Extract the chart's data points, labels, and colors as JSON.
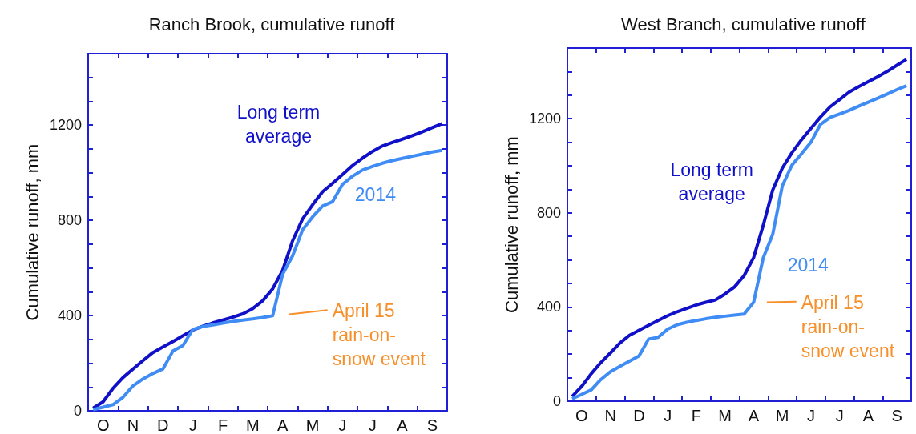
{
  "chart_data": [
    {
      "type": "line",
      "title": "Ranch Brook, cumulative runoff",
      "ylabel": "Cumulative runoff, mm",
      "categories": [
        null,
        "O",
        null,
        null,
        "N",
        null,
        null,
        "D",
        null,
        null,
        "J",
        null,
        null,
        "F",
        null,
        null,
        "M",
        null,
        null,
        "A",
        null,
        null,
        "M",
        null,
        null,
        "J",
        null,
        null,
        "J",
        null,
        null,
        "A",
        null,
        null,
        "S",
        null
      ],
      "ylim": [
        0,
        1500
      ],
      "yticks": [
        0,
        {
          "value": 100,
          "label": null
        },
        {
          "value": 200,
          "label": null
        },
        {
          "value": 300,
          "label": null
        },
        400,
        {
          "value": 500,
          "label": null
        },
        {
          "value": 600,
          "label": null
        },
        {
          "value": 700,
          "label": null
        },
        800,
        {
          "value": 900,
          "label": null
        },
        {
          "value": 1000,
          "label": null
        },
        {
          "value": 1100,
          "label": null
        },
        1200,
        {
          "value": 1300,
          "label": null
        },
        {
          "value": 1400,
          "label": null
        },
        {
          "value": 1500,
          "label": null
        }
      ],
      "grid": false,
      "legend": false,
      "annotations": [
        "April 15\nrain-on-\nsnow event"
      ],
      "series": [
        {
          "name": "Long term average",
          "color": "#1010c8",
          "values": [
            11,
            38,
            95,
            140,
            176,
            211,
            245,
            268,
            291,
            315,
            339,
            355,
            369,
            381,
            393,
            407,
            429,
            462,
            512,
            590,
            714,
            806,
            865,
            920,
            955,
            992,
            1030,
            1061,
            1089,
            1112,
            1127,
            1141,
            1156,
            1172,
            1189,
            1206
          ]
        },
        {
          "name": "2014",
          "color": "#3f8cf5",
          "values": [
            5,
            15,
            26,
            57,
            105,
            134,
            157,
            176,
            251,
            274,
            342,
            354,
            361,
            368,
            375,
            381,
            386,
            392,
            399,
            573,
            651,
            760,
            814,
            860,
            878,
            951,
            985,
            1011,
            1026,
            1040,
            1051,
            1060,
            1069,
            1078,
            1087,
            1094
          ]
        }
      ]
    },
    {
      "type": "line",
      "title": "West Branch, cumulative runoff",
      "ylabel": "Cumulative runoff, mm",
      "categories": [
        null,
        "O",
        null,
        null,
        "N",
        null,
        null,
        "D",
        null,
        null,
        "J",
        null,
        null,
        "F",
        null,
        null,
        "M",
        null,
        null,
        "A",
        null,
        null,
        "M",
        null,
        null,
        "J",
        null,
        null,
        "J",
        null,
        null,
        "A",
        null,
        null,
        "S",
        null
      ],
      "ylim": [
        0,
        1500
      ],
      "yticks": [
        0,
        {
          "value": 100,
          "label": null
        },
        {
          "value": 200,
          "label": null
        },
        {
          "value": 300,
          "label": null
        },
        400,
        {
          "value": 500,
          "label": null
        },
        {
          "value": 600,
          "label": null
        },
        {
          "value": 700,
          "label": null
        },
        800,
        {
          "value": 900,
          "label": null
        },
        {
          "value": 1000,
          "label": null
        },
        {
          "value": 1100,
          "label": null
        },
        1200,
        {
          "value": 1300,
          "label": null
        },
        {
          "value": 1400,
          "label": null
        },
        {
          "value": 1500,
          "label": null
        }
      ],
      "grid": false,
      "legend": false,
      "annotations": [
        "April 15\nrain-on-\nsnow event"
      ],
      "series": [
        {
          "name": "Long term average",
          "color": "#1010c8",
          "values": [
            20,
            63,
            117,
            164,
            205,
            247,
            280,
            301,
            322,
            343,
            363,
            380,
            394,
            409,
            420,
            430,
            455,
            485,
            533,
            610,
            746,
            897,
            990,
            1055,
            1110,
            1159,
            1207,
            1250,
            1281,
            1313,
            1336,
            1357,
            1378,
            1401,
            1427,
            1452
          ]
        },
        {
          "name": "2014",
          "color": "#3f8cf5",
          "values": [
            10,
            29,
            48,
            92,
            125,
            148,
            170,
            192,
            264,
            271,
            306,
            325,
            335,
            343,
            350,
            356,
            361,
            366,
            370,
            420,
            608,
            709,
            914,
            1002,
            1050,
            1100,
            1176,
            1205,
            1220,
            1235,
            1253,
            1270,
            1287,
            1305,
            1323,
            1340
          ]
        }
      ]
    }
  ]
}
